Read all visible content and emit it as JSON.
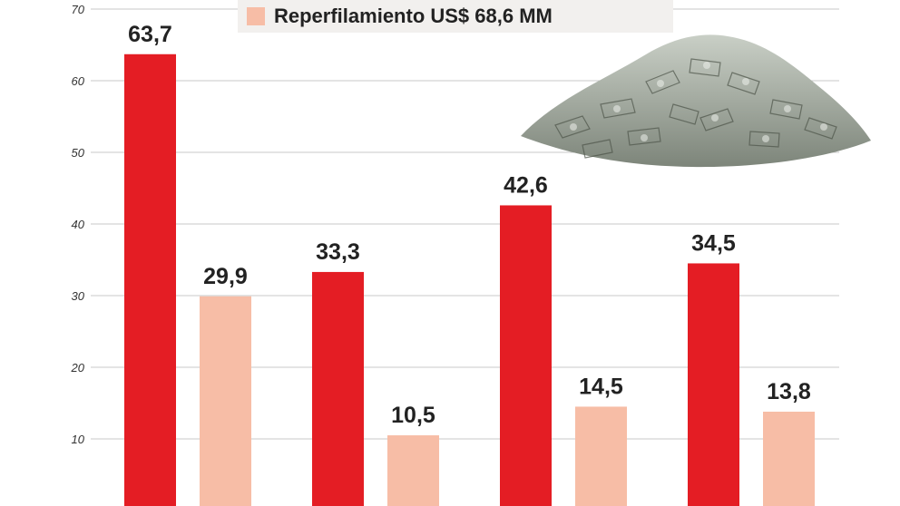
{
  "legend": {
    "label": "Reperfilamiento US$ 68,6 MM",
    "swatch_color": "#f7bda6"
  },
  "image": {
    "icon": "money-pile-icon"
  },
  "chart_data": {
    "type": "bar",
    "categories": [
      "",
      "",
      "",
      ""
    ],
    "series": [
      {
        "values": [
          63.7,
          33.3,
          42.6,
          34.5
        ],
        "labels": [
          "63,7",
          "33,3",
          "42,6",
          "34,5"
        ],
        "color": "#e41d24"
      },
      {
        "name": "Reperfilamiento US$ 68,6 MM",
        "values": [
          29.9,
          10.5,
          14.5,
          13.8
        ],
        "labels": [
          "29,9",
          "10,5",
          "14,5",
          "13,8"
        ],
        "color": "#f7bda6"
      }
    ],
    "yticks": [
      10,
      20,
      30,
      40,
      50,
      60,
      70
    ],
    "ylim": [
      0,
      70
    ],
    "grid": true,
    "legend_position": "top"
  }
}
